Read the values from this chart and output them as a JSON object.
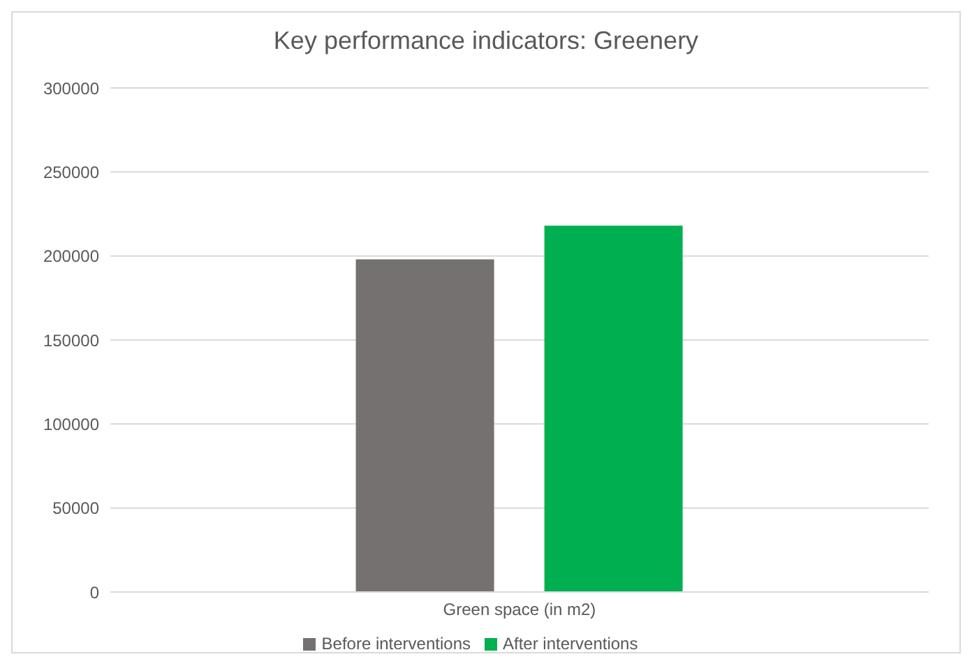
{
  "chart_data": {
    "type": "bar",
    "title": "Key performance indicators: Greenery",
    "categories": [
      "Green space (in m2)"
    ],
    "series": [
      {
        "name": "Before interventions",
        "color": "#767171",
        "values": [
          198000
        ]
      },
      {
        "name": "After interventions",
        "color": "#00b050",
        "values": [
          218000
        ]
      }
    ],
    "ylim": [
      0,
      300000
    ],
    "yticks": [
      0,
      50000,
      100000,
      150000,
      200000,
      250000,
      300000
    ],
    "grid": "y",
    "legend": "bottom"
  }
}
